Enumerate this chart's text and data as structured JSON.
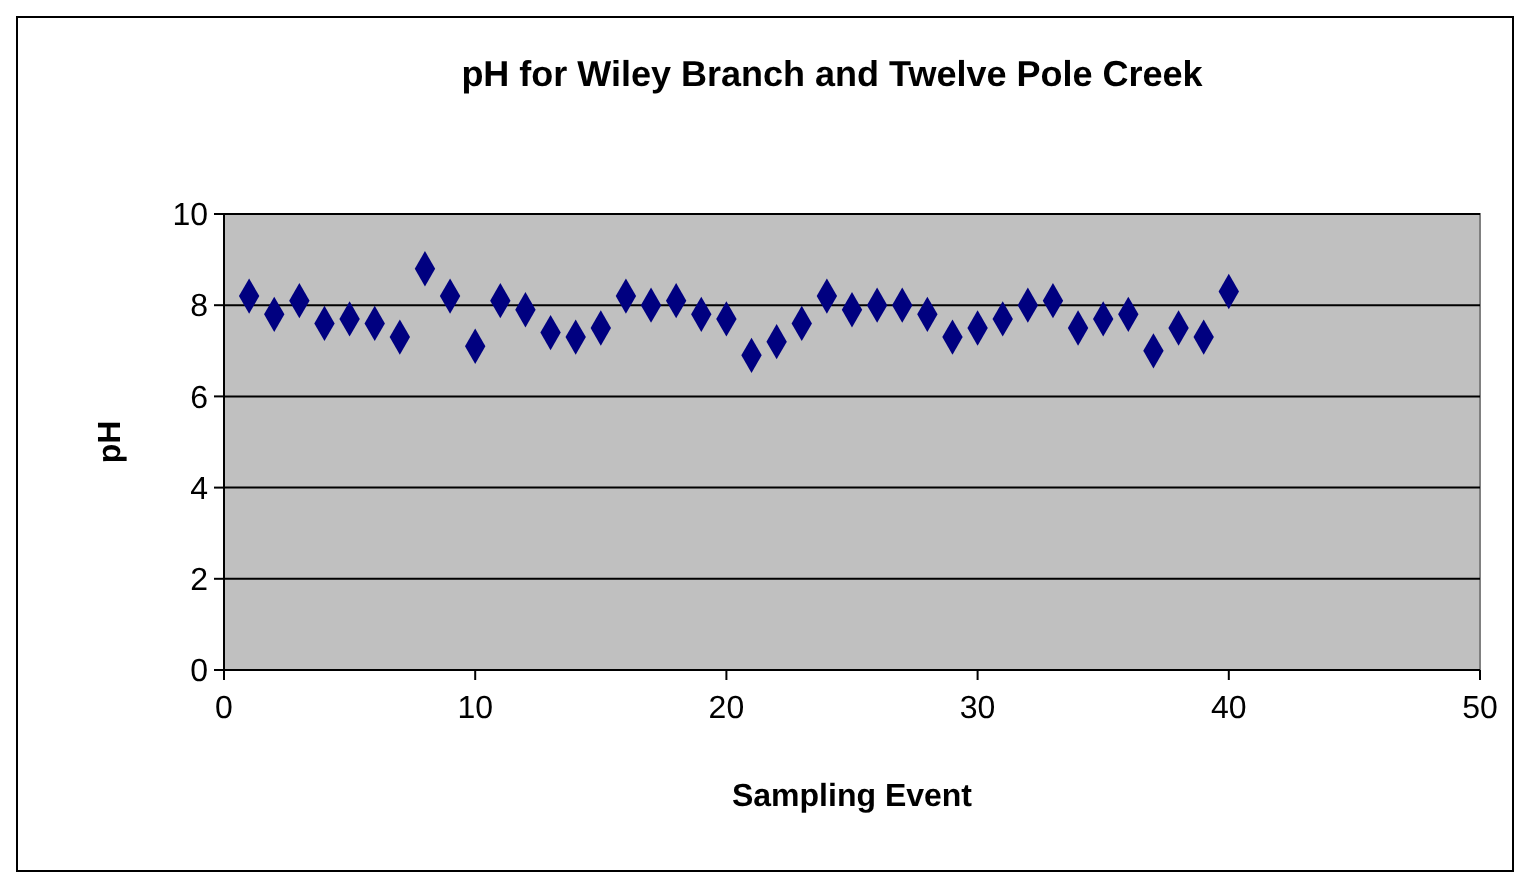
{
  "chart_data": {
    "type": "scatter",
    "title": "pH for Wiley Branch and Twelve Pole Creek",
    "xlabel": "Sampling Event",
    "ylabel": "pH",
    "x": [
      1,
      2,
      3,
      4,
      5,
      6,
      7,
      8,
      9,
      10,
      11,
      12,
      13,
      14,
      15,
      16,
      17,
      18,
      19,
      20,
      21,
      22,
      23,
      24,
      25,
      26,
      27,
      28,
      29,
      30,
      31,
      32,
      33,
      34,
      35,
      36,
      37,
      38,
      39,
      40
    ],
    "series": [
      {
        "color": "#000080",
        "values": [
          8.2,
          7.8,
          8.1,
          7.6,
          7.7,
          7.6,
          7.3,
          8.8,
          8.2,
          7.1,
          8.1,
          7.9,
          7.4,
          7.3,
          7.5,
          8.2,
          8.0,
          8.1,
          7.8,
          7.7,
          6.9,
          7.2,
          7.6,
          8.2,
          7.9,
          8.0,
          8.0,
          7.8,
          7.3,
          7.5,
          7.7,
          8.0,
          8.1,
          7.5,
          7.7,
          7.8,
          7.0,
          7.5,
          7.3,
          8.3
        ]
      }
    ],
    "xlim": [
      0,
      50
    ],
    "xticks": [
      0,
      10,
      20,
      30,
      40,
      50
    ],
    "ylim": [
      0,
      10
    ],
    "yticks": [
      0,
      2,
      4,
      6,
      8,
      10
    ],
    "grid": "y",
    "marker": "diamond"
  }
}
